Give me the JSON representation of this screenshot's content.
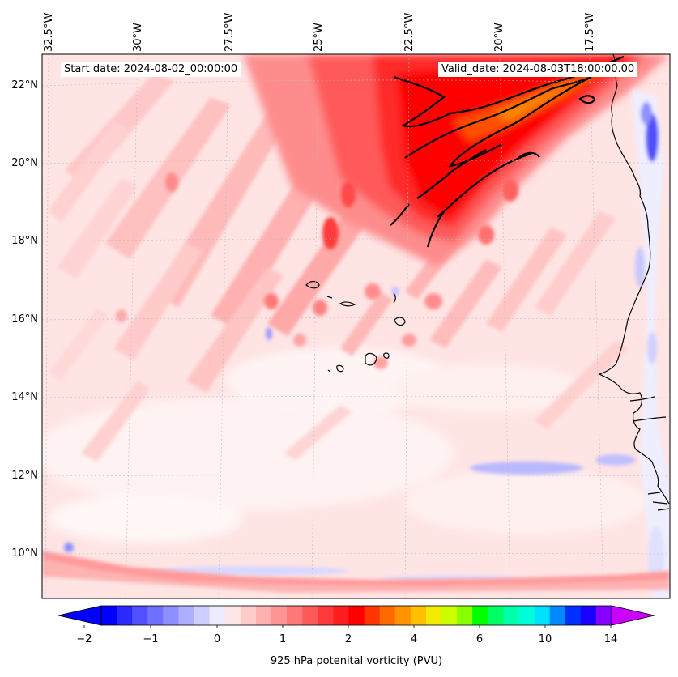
{
  "map": {
    "start_date": "Start date: 2024-08-02_00:00:00",
    "valid_date": "Valid_date: 2024-08-03T18:00:00.00",
    "lon_labels": [
      "32.5°W",
      "30°W",
      "27.5°W",
      "25°W",
      "22.5°W",
      "20°W",
      "17.5°W"
    ],
    "lat_labels": [
      "22°N",
      "20°N",
      "18°N",
      "16°N",
      "14°N",
      "12°N",
      "10°N"
    ],
    "extent": {
      "lon_min": -33.0,
      "lon_max": -15.0,
      "lat_min": 9.0,
      "lat_max": 22.8
    }
  },
  "colorbar": {
    "label": "925 hPa potenital vorticity (PVU)",
    "ticks": [
      "−2",
      "−1",
      "0",
      "1",
      "2",
      "4",
      "6",
      "10",
      "14"
    ],
    "colors": [
      "#0000ff",
      "#2a2aff",
      "#5050ff",
      "#7070ff",
      "#8f8fff",
      "#afafff",
      "#cfcfff",
      "#ececff",
      "#ffe6e6",
      "#ffcccc",
      "#ffb0b0",
      "#ff9494",
      "#ff7878",
      "#ff5a5a",
      "#ff3a3a",
      "#ff1e1e",
      "#ff0000",
      "#ff3600",
      "#ff6a00",
      "#ff9400",
      "#ffbf00",
      "#f2ea00",
      "#cbff00",
      "#8aff00",
      "#00ff00",
      "#00ff66",
      "#00ffaa",
      "#00ffd8",
      "#00e0ff",
      "#0088ff",
      "#0030ff",
      "#1a00ff",
      "#8800ff"
    ],
    "min_color": "#0000ff",
    "max_color": "#cc00ff"
  }
}
